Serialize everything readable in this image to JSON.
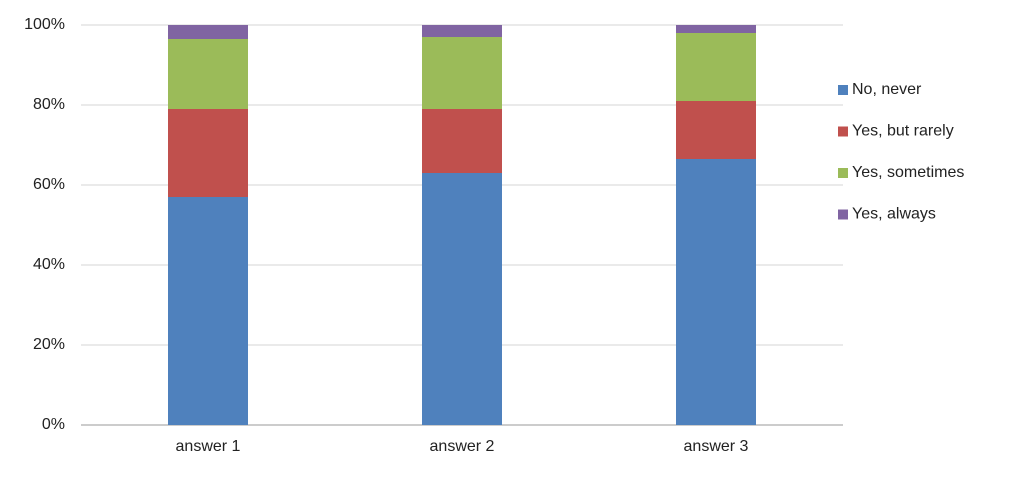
{
  "chart_data": {
    "type": "stacked_bar",
    "categories": [
      "answer 1",
      "answer 2",
      "answer 3"
    ],
    "series": [
      {
        "name": "No, never",
        "color": "#4f81bd",
        "values": [
          57,
          63,
          66.5
        ]
      },
      {
        "name": "Yes, but rarely",
        "color": "#c0504d",
        "values": [
          22,
          16,
          14.5
        ]
      },
      {
        "name": "Yes, sometimes",
        "color": "#9bbb59",
        "values": [
          17.5,
          18,
          17
        ]
      },
      {
        "name": "Yes, always",
        "color": "#8064a2",
        "values": [
          3.5,
          3,
          2
        ]
      }
    ],
    "ylim": [
      0,
      100
    ],
    "yticks": [
      {
        "value": 0,
        "label": "0%"
      },
      {
        "value": 20,
        "label": "20%"
      },
      {
        "value": 40,
        "label": "40%"
      },
      {
        "value": 60,
        "label": "60%"
      },
      {
        "value": 80,
        "label": "80%"
      },
      {
        "value": 100,
        "label": "100%"
      }
    ],
    "grid": true,
    "legend": "right"
  }
}
